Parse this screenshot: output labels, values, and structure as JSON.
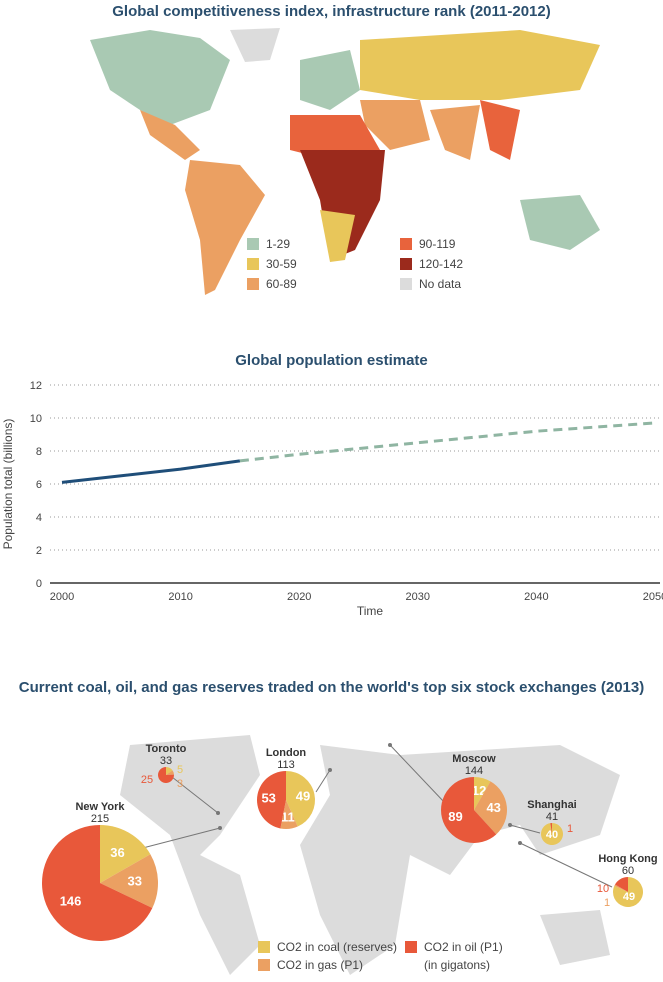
{
  "map1": {
    "title": "Global competitiveness index, infrastructure rank (2011-2012)",
    "legend": [
      {
        "label": "1-29",
        "color": "#a9c9b3"
      },
      {
        "label": "30-59",
        "color": "#e8c65a"
      },
      {
        "label": "60-89",
        "color": "#eba062"
      },
      {
        "label": "90-119",
        "color": "#e8633c"
      },
      {
        "label": "120-142",
        "color": "#9b2a1c"
      },
      {
        "label": "No data",
        "color": "#dcdcdc"
      }
    ]
  },
  "chart_data": [
    {
      "type": "line",
      "title": "Global population estimate",
      "xlabel": "Time",
      "ylabel": "Population total (billions)",
      "xlim": [
        2000,
        2050
      ],
      "ylim": [
        0,
        12
      ],
      "xticks": [
        "2000",
        "2010",
        "2020",
        "2030",
        "2040",
        "2050"
      ],
      "yticks": [
        "0",
        "2",
        "4",
        "6",
        "8",
        "10",
        "12"
      ],
      "grid": "horizontal dotted",
      "series": [
        {
          "style": "solid",
          "color": "#1f4e79",
          "x": [
            2000,
            2005,
            2010,
            2015
          ],
          "y": [
            6.1,
            6.5,
            6.9,
            7.4
          ]
        },
        {
          "style": "dashed",
          "color": "#8fb5a2",
          "x": [
            2015,
            2020,
            2030,
            2040,
            2050
          ],
          "y": [
            7.4,
            7.8,
            8.5,
            9.2,
            9.7
          ]
        }
      ]
    },
    {
      "type": "pie",
      "title": "Current coal, oil, and gas reserves traded on the world's top six stock exchanges (2013)",
      "categories": [
        "CO2 in coal (reserves)",
        "CO2 in gas (P1)",
        "CO2 in oil (P1)"
      ],
      "colors": [
        "#e8c65a",
        "#eba062",
        "#e8583a"
      ],
      "unit": "(in gigatons)",
      "pies": [
        {
          "name": "Toronto",
          "total": "33",
          "values": [
            5,
            3,
            25
          ]
        },
        {
          "name": "London",
          "total": "113",
          "values": [
            49,
            11,
            53
          ]
        },
        {
          "name": "New York",
          "total": "215",
          "values": [
            36,
            33,
            146
          ]
        },
        {
          "name": "Moscow",
          "total": "144",
          "values": [
            12,
            43,
            89
          ]
        },
        {
          "name": "Shanghai",
          "total": "41",
          "values": [
            40,
            0,
            1
          ]
        },
        {
          "name": "Hong Kong",
          "total": "60",
          "values": [
            49,
            1,
            10
          ]
        }
      ]
    }
  ]
}
